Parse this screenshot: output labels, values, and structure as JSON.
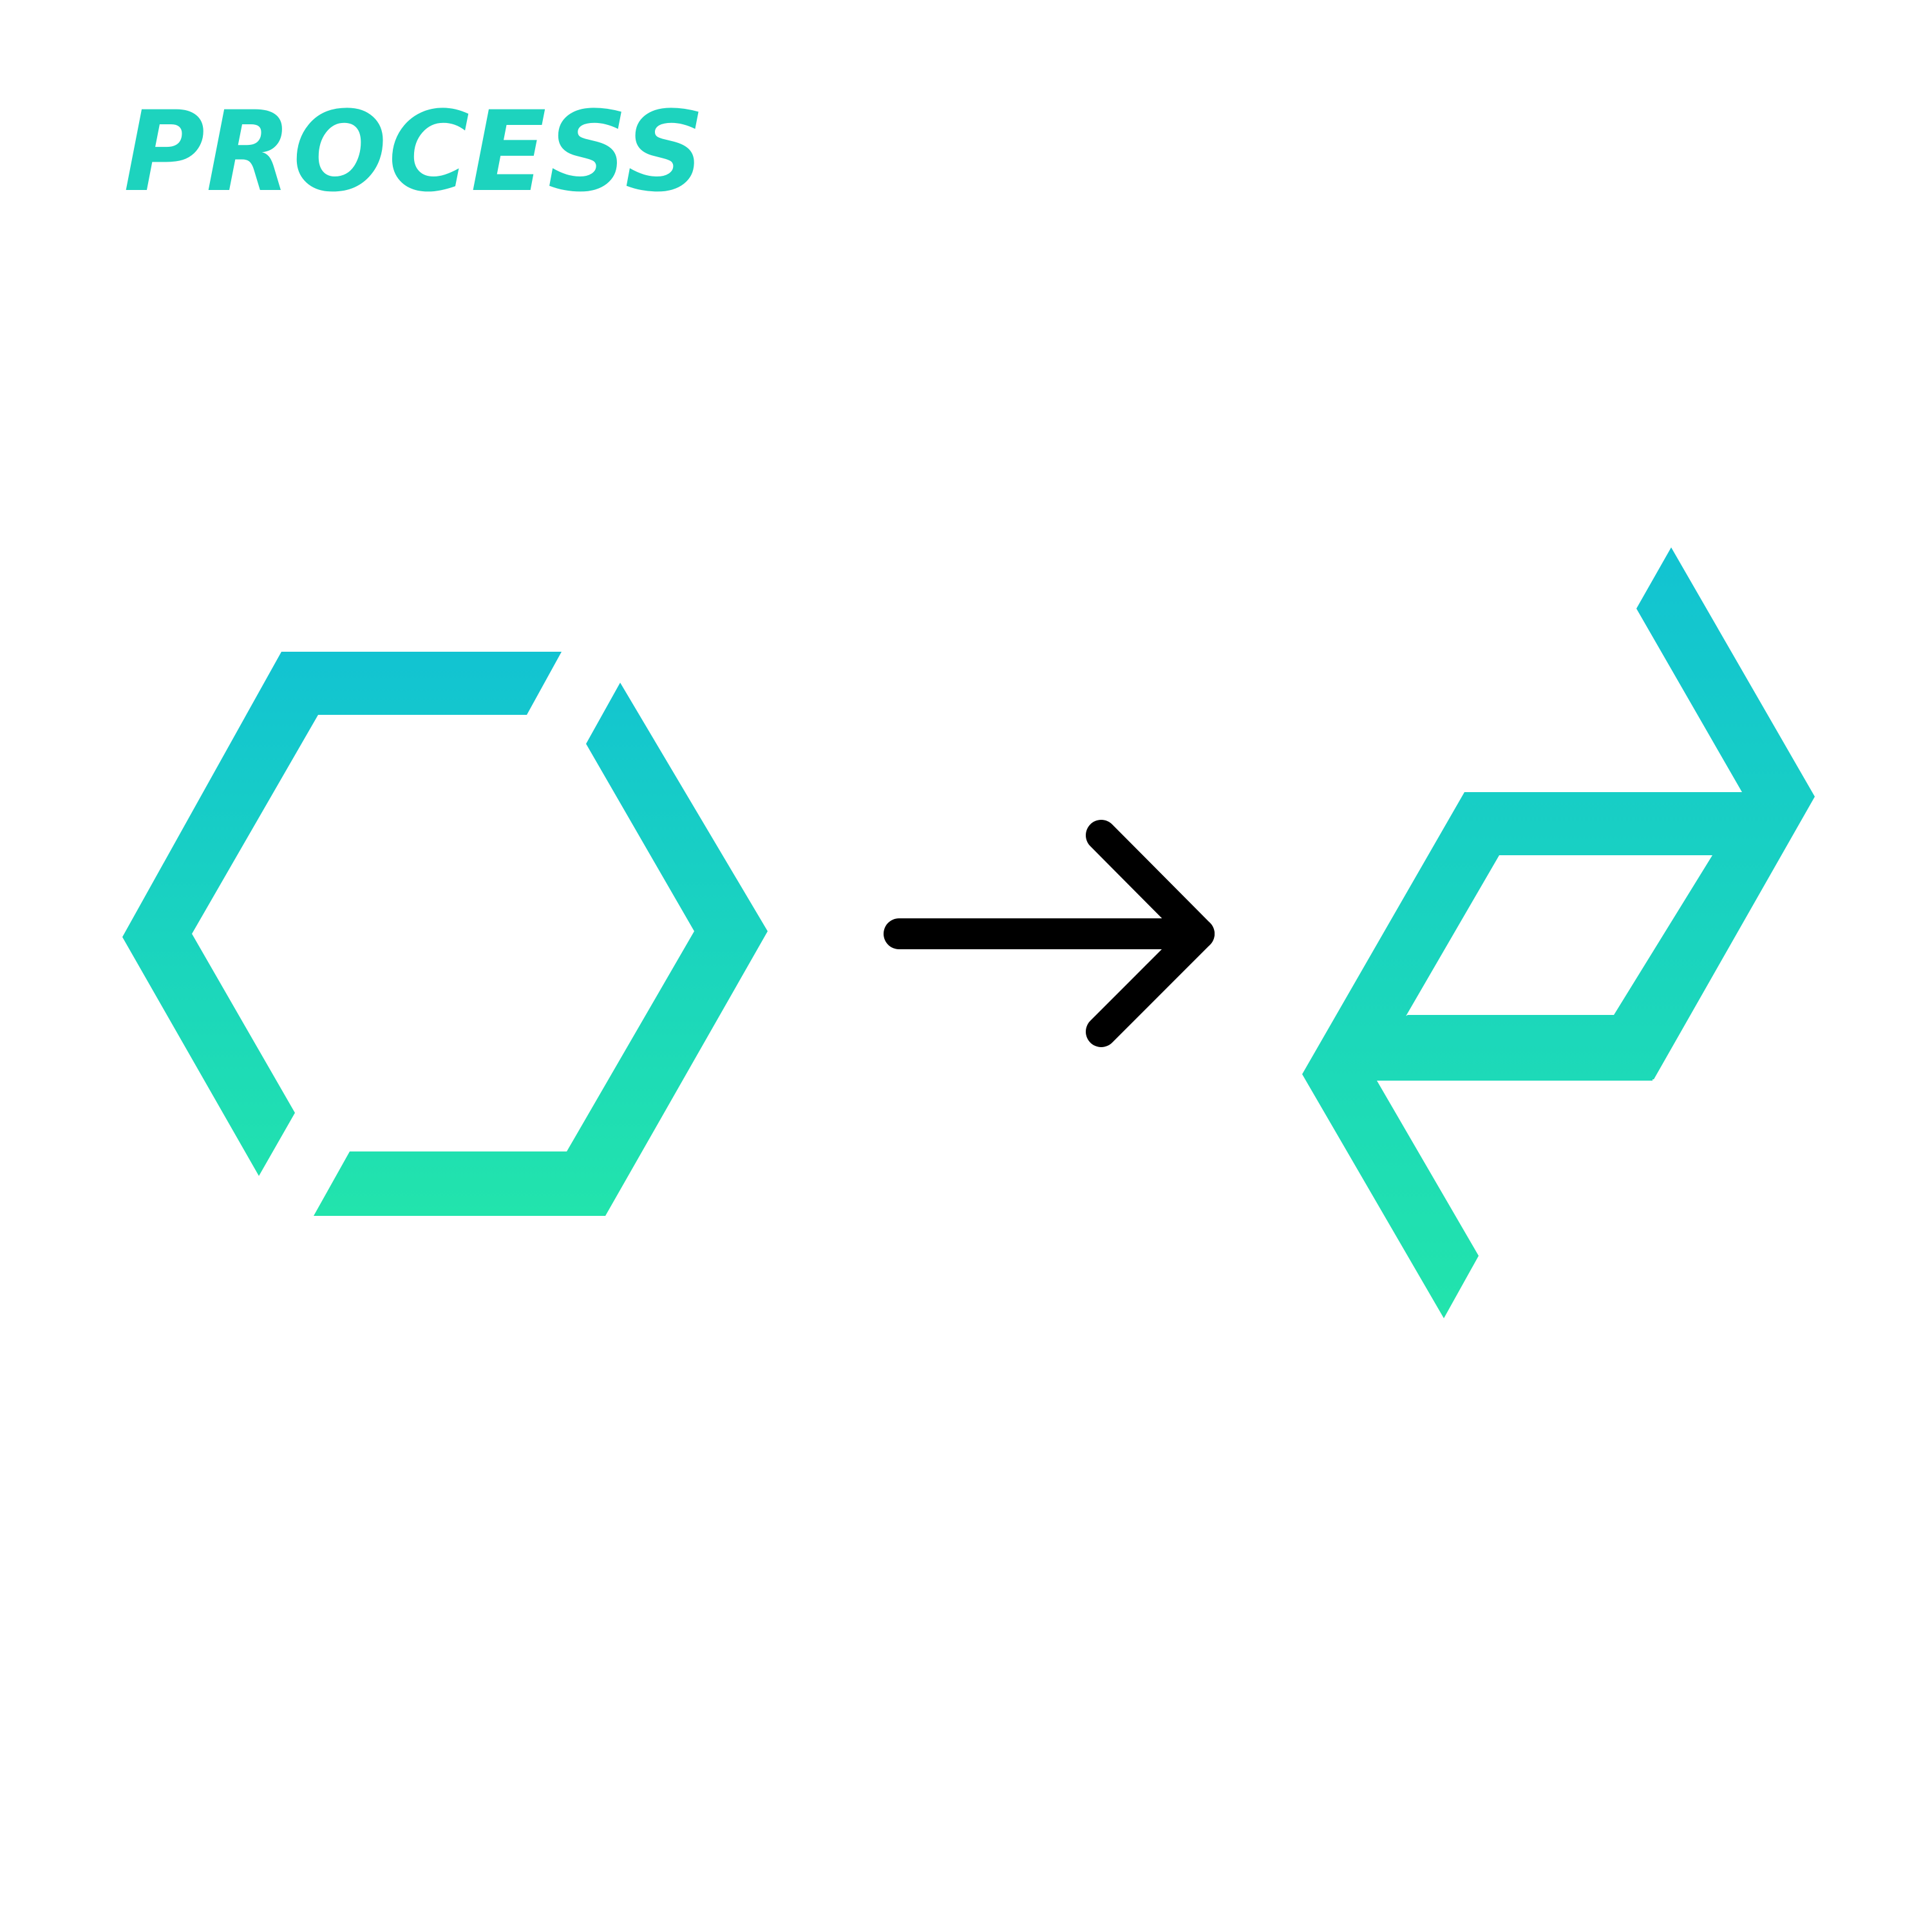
{
  "page": {
    "title": "PROCESS"
  },
  "diagram": {
    "steps": [
      {
        "name": "broken-hexagon-logo",
        "description_visible": false
      },
      {
        "name": "arrow",
        "description_visible": false
      },
      {
        "name": "parallelogram-logo",
        "description_visible": false
      }
    ],
    "colors": {
      "title": "#1dd3be",
      "gradient_top": "#12c3d2",
      "gradient_bottom": "#22e4ac",
      "arrow": "#000000",
      "background": "#ffffff"
    }
  }
}
